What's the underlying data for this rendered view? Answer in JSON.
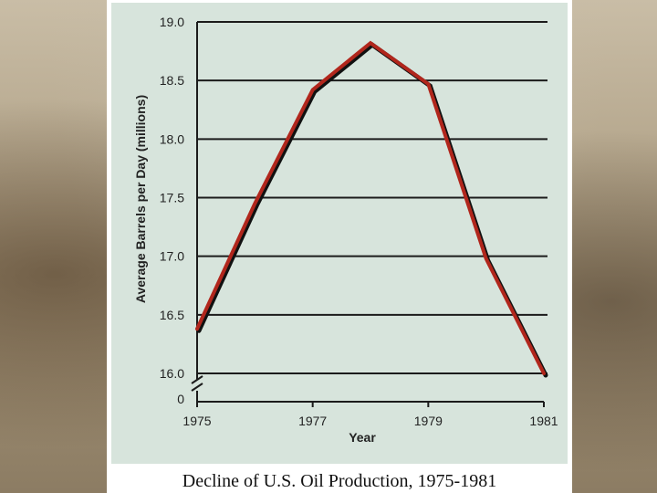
{
  "caption": "Decline of U.S. Oil Production, 1975-1981",
  "chart_data": {
    "type": "line",
    "xlabel": "Year",
    "ylabel": "Average Barrels per Day (millions)",
    "x": [
      1975,
      1976,
      1977,
      1978,
      1979,
      1980,
      1981
    ],
    "series": [
      {
        "values": [
          16.38,
          17.45,
          18.42,
          18.82,
          18.47,
          16.98,
          16.0
        ]
      }
    ],
    "xlim": [
      1975,
      1981
    ],
    "ylim": [
      16.0,
      19.0
    ],
    "x_ticks": [
      "1975",
      "1977",
      "1979",
      "1981"
    ],
    "y_ticks": [
      "16.0",
      "16.5",
      "17.0",
      "17.5",
      "18.0",
      "18.5",
      "19.0"
    ],
    "y_break_label": "0",
    "axis_break": true,
    "grid": true,
    "line_color": "#b1261c",
    "shadow_color": "#111111",
    "background_color": "#d7e4dc"
  }
}
